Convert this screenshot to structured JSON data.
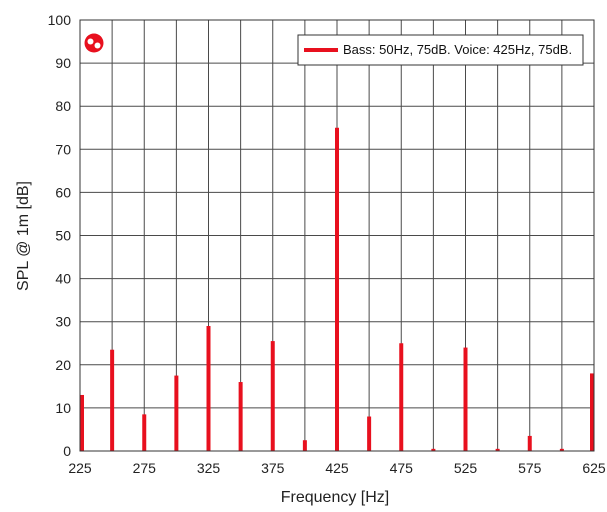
{
  "chart_data": {
    "type": "bar",
    "xlabel": "Frequency [Hz]",
    "ylabel": "SPL @ 1m [dB]",
    "xlim": [
      225,
      625
    ],
    "ylim": [
      0,
      100
    ],
    "xticks": [
      "225",
      "275",
      "325",
      "375",
      "425",
      "475",
      "525",
      "575",
      "625"
    ],
    "yticks": [
      "0",
      "10",
      "20",
      "30",
      "40",
      "50",
      "60",
      "70",
      "80",
      "90",
      "100"
    ],
    "grid": true,
    "legend_position": "top-right",
    "series": [
      {
        "name": "Bass: 50Hz, 75dB. Voice: 425Hz, 75dB.",
        "color": "#e8101e",
        "x": [
          225,
          250,
          275,
          300,
          325,
          350,
          375,
          400,
          425,
          450,
          475,
          500,
          525,
          550,
          575,
          600,
          625
        ],
        "values": [
          13,
          23.5,
          8.5,
          17.5,
          29,
          16,
          25.5,
          2.5,
          75,
          8,
          25,
          0.5,
          24,
          0.5,
          3.5,
          0.5,
          18
        ]
      }
    ]
  },
  "logo_icon": "brand-logo-icon"
}
